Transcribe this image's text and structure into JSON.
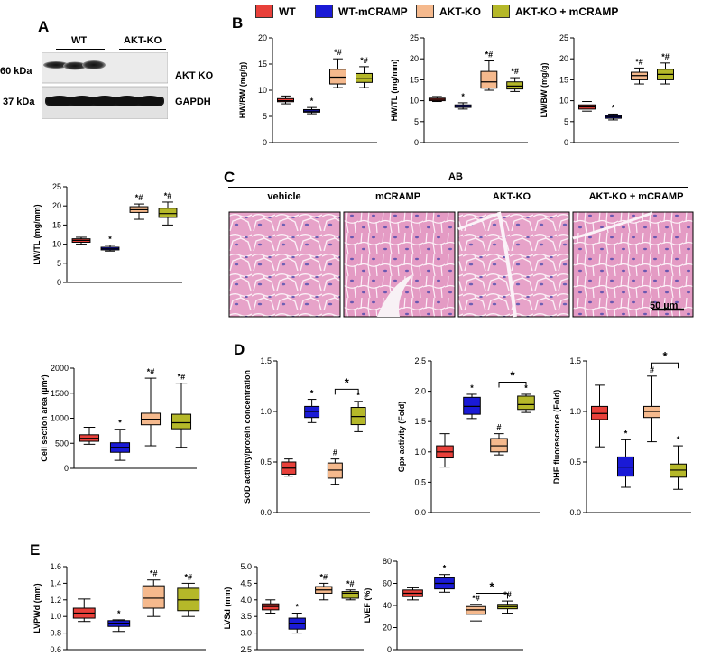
{
  "panel_labels": {
    "A": "A",
    "B": "B",
    "C": "C",
    "D": "D",
    "E": "E"
  },
  "legend": [
    {
      "name": "WT",
      "color": "#e8403a"
    },
    {
      "name": "WT-mCRAMP",
      "color": "#1a1ad6"
    },
    {
      "name": "AKT-KO",
      "color": "#f5b98d"
    },
    {
      "name": "AKT-KO + mCRAMP",
      "color": "#b5b829"
    }
  ],
  "western_blot": {
    "group_labels": [
      "WT",
      "AKT-KO"
    ],
    "rows": [
      {
        "mw": "60 kDa",
        "name": "AKT KO"
      },
      {
        "mw": "37 kDa",
        "name": "GAPDH"
      }
    ]
  },
  "histology": {
    "header": "AB",
    "labels": [
      "vehicle",
      "mCRAMP",
      "AKT-KO",
      "AKT-KO + mCRAMP"
    ],
    "scale_bar": "50 µm"
  },
  "chart_data": [
    {
      "id": "hwbw",
      "type": "box",
      "ylabel": "HW/BW (mg/g)",
      "ylim": [
        0,
        20
      ],
      "ticks": [
        "0",
        "5",
        "10",
        "15",
        "20"
      ],
      "series": [
        {
          "min": 7.4,
          "q1": 7.8,
          "med": 8.0,
          "q3": 8.4,
          "max": 8.9,
          "ann": ""
        },
        {
          "min": 5.5,
          "q1": 5.8,
          "med": 6.0,
          "q3": 6.3,
          "max": 6.7,
          "ann": "*"
        },
        {
          "min": 10.5,
          "q1": 11.2,
          "med": 12.5,
          "q3": 14.0,
          "max": 16.0,
          "ann": "*#"
        },
        {
          "min": 10.5,
          "q1": 11.5,
          "med": 12.2,
          "q3": 13.2,
          "max": 14.5,
          "ann": "*#"
        }
      ]
    },
    {
      "id": "hwtl",
      "type": "box",
      "ylabel": "HW/TL (mg/mm)",
      "ylim": [
        0,
        25
      ],
      "ticks": [
        "0",
        "5",
        "10",
        "15",
        "20",
        "25"
      ],
      "series": [
        {
          "min": 9.8,
          "q1": 10.0,
          "med": 10.3,
          "q3": 10.6,
          "max": 11.0,
          "ann": ""
        },
        {
          "min": 8.0,
          "q1": 8.4,
          "med": 8.7,
          "q3": 9.0,
          "max": 9.5,
          "ann": "*"
        },
        {
          "min": 12.5,
          "q1": 13.0,
          "med": 14.5,
          "q3": 17.0,
          "max": 19.5,
          "ann": "*#"
        },
        {
          "min": 12.2,
          "q1": 12.8,
          "med": 13.5,
          "q3": 14.5,
          "max": 15.5,
          "ann": "*#"
        }
      ]
    },
    {
      "id": "lwbw",
      "type": "box",
      "ylabel": "LW/BW (mg/g)",
      "ylim": [
        0,
        25
      ],
      "ticks": [
        "0",
        "5",
        "10",
        "15",
        "20",
        "25"
      ],
      "series": [
        {
          "min": 7.5,
          "q1": 8.0,
          "med": 8.5,
          "q3": 9.0,
          "max": 9.8,
          "ann": ""
        },
        {
          "min": 5.4,
          "q1": 5.8,
          "med": 6.1,
          "q3": 6.4,
          "max": 6.8,
          "ann": "*"
        },
        {
          "min": 14.0,
          "q1": 15.0,
          "med": 16.0,
          "q3": 16.8,
          "max": 17.8,
          "ann": "*#"
        },
        {
          "min": 14.0,
          "q1": 15.0,
          "med": 16.3,
          "q3": 17.5,
          "max": 19.0,
          "ann": "*#"
        }
      ]
    },
    {
      "id": "lwtl",
      "type": "box",
      "ylabel": "LW/TL (mg/mm)",
      "ylim": [
        0,
        25
      ],
      "ticks": [
        "0",
        "5",
        "10",
        "15",
        "20",
        "25"
      ],
      "series": [
        {
          "min": 10.0,
          "q1": 10.5,
          "med": 11.0,
          "q3": 11.4,
          "max": 11.8,
          "ann": ""
        },
        {
          "min": 8.2,
          "q1": 8.5,
          "med": 8.8,
          "q3": 9.2,
          "max": 9.7,
          "ann": "*"
        },
        {
          "min": 16.5,
          "q1": 18.3,
          "med": 19.0,
          "q3": 19.8,
          "max": 20.5,
          "ann": "*#"
        },
        {
          "min": 15.0,
          "q1": 17.0,
          "med": 18.0,
          "q3": 19.4,
          "max": 21.0,
          "ann": "*#"
        }
      ]
    },
    {
      "id": "csa",
      "type": "box",
      "ylabel": "Cell section area (µm²)",
      "ylim": [
        0,
        2000
      ],
      "ticks": [
        "0",
        "500",
        "1000",
        "1500",
        "2000"
      ],
      "series": [
        {
          "min": 480,
          "q1": 540,
          "med": 600,
          "q3": 670,
          "max": 820,
          "ann": ""
        },
        {
          "min": 160,
          "q1": 320,
          "med": 420,
          "q3": 510,
          "max": 780,
          "ann": "*"
        },
        {
          "min": 450,
          "q1": 870,
          "med": 980,
          "q3": 1100,
          "max": 1800,
          "ann": "*#"
        },
        {
          "min": 420,
          "q1": 790,
          "med": 910,
          "q3": 1080,
          "max": 1700,
          "ann": "*#"
        }
      ]
    },
    {
      "id": "sod",
      "type": "box",
      "ylabel": "SOD activity/protein concentration",
      "ylim": [
        0,
        1.5
      ],
      "ticks": [
        "0.0",
        "0.5",
        "1.0",
        "1.5"
      ],
      "series": [
        {
          "min": 0.36,
          "q1": 0.38,
          "med": 0.44,
          "q3": 0.5,
          "max": 0.53,
          "ann": ""
        },
        {
          "min": 0.89,
          "q1": 0.94,
          "med": 1.0,
          "q3": 1.05,
          "max": 1.12,
          "ann": "*"
        },
        {
          "min": 0.28,
          "q1": 0.34,
          "med": 0.42,
          "q3": 0.49,
          "max": 0.53,
          "ann": "#"
        },
        {
          "min": 0.8,
          "q1": 0.87,
          "med": 0.95,
          "q3": 1.04,
          "max": 1.1,
          "ann": "*"
        }
      ],
      "bracket": {
        "from": 2,
        "to": 3,
        "at": 1.22,
        "label": "*"
      }
    },
    {
      "id": "gpx",
      "type": "box",
      "ylabel": "Gpx activity (Fold)",
      "ylim": [
        0,
        2.5
      ],
      "ticks": [
        "0.0",
        "0.5",
        "1.0",
        "1.5",
        "2.0",
        "2.5"
      ],
      "series": [
        {
          "min": 0.75,
          "q1": 0.9,
          "med": 1.0,
          "q3": 1.1,
          "max": 1.3,
          "ann": ""
        },
        {
          "min": 1.55,
          "q1": 1.62,
          "med": 1.75,
          "q3": 1.9,
          "max": 1.95,
          "ann": "*"
        },
        {
          "min": 0.95,
          "q1": 1.0,
          "med": 1.1,
          "q3": 1.22,
          "max": 1.3,
          "ann": "#"
        },
        {
          "min": 1.65,
          "q1": 1.7,
          "med": 1.78,
          "q3": 1.92,
          "max": 1.95,
          "ann": "*"
        }
      ],
      "bracket": {
        "from": 2,
        "to": 3,
        "at": 2.15,
        "label": "*"
      }
    },
    {
      "id": "dhe",
      "type": "box",
      "ylabel": "DHE fluorescence (Fold)",
      "ylim": [
        0,
        1.5
      ],
      "ticks": [
        "0.0",
        "0.5",
        "1.0",
        "1.5"
      ],
      "series": [
        {
          "min": 0.65,
          "q1": 0.92,
          "med": 0.98,
          "q3": 1.05,
          "max": 1.26,
          "ann": ""
        },
        {
          "min": 0.25,
          "q1": 0.36,
          "med": 0.45,
          "q3": 0.55,
          "max": 0.72,
          "ann": "*"
        },
        {
          "min": 0.7,
          "q1": 0.94,
          "med": 1.0,
          "q3": 1.05,
          "max": 1.35,
          "ann": "#"
        },
        {
          "min": 0.23,
          "q1": 0.35,
          "med": 0.42,
          "q3": 0.48,
          "max": 0.66,
          "ann": "*"
        }
      ],
      "bracket": {
        "from": 2,
        "to": 3,
        "at": 1.48,
        "label": "*"
      }
    },
    {
      "id": "lvpwd",
      "type": "box",
      "ylabel": "LVPWd (mm)",
      "ylim": [
        0.6,
        1.6
      ],
      "ticks": [
        "0.6",
        "0.8",
        "1.0",
        "1.2",
        "1.4",
        "1.6"
      ],
      "series": [
        {
          "min": 0.94,
          "q1": 0.98,
          "med": 1.04,
          "q3": 1.1,
          "max": 1.21,
          "ann": ""
        },
        {
          "min": 0.82,
          "q1": 0.88,
          "med": 0.92,
          "q3": 0.95,
          "max": 0.96,
          "ann": "*"
        },
        {
          "min": 1.0,
          "q1": 1.1,
          "med": 1.22,
          "q3": 1.37,
          "max": 1.44,
          "ann": "*#"
        },
        {
          "min": 1.0,
          "q1": 1.07,
          "med": 1.2,
          "q3": 1.34,
          "max": 1.4,
          "ann": "*#"
        }
      ]
    },
    {
      "id": "lvsd",
      "type": "box",
      "ylabel": "LVSd (mm)",
      "ylim": [
        2.5,
        5.0
      ],
      "ticks": [
        "2.5",
        "3.0",
        "3.5",
        "4.0",
        "4.5",
        "5.0"
      ],
      "series": [
        {
          "min": 3.6,
          "q1": 3.7,
          "med": 3.8,
          "q3": 3.88,
          "max": 4.0,
          "ann": ""
        },
        {
          "min": 3.0,
          "q1": 3.12,
          "med": 3.3,
          "q3": 3.45,
          "max": 3.6,
          "ann": "*"
        },
        {
          "min": 4.0,
          "q1": 4.2,
          "med": 4.3,
          "q3": 4.4,
          "max": 4.5,
          "ann": "*#"
        },
        {
          "min": 4.0,
          "q1": 4.05,
          "med": 4.2,
          "q3": 4.25,
          "max": 4.3,
          "ann": "*#"
        }
      ]
    },
    {
      "id": "lvef",
      "type": "box",
      "ylabel": "LVEF (%)",
      "ylim": [
        0,
        80
      ],
      "ticks": [
        "0",
        "20",
        "40",
        "60",
        "80"
      ],
      "series": [
        {
          "min": 45,
          "q1": 48,
          "med": 51,
          "q3": 54,
          "max": 56,
          "ann": ""
        },
        {
          "min": 52,
          "q1": 55,
          "med": 60,
          "q3": 65,
          "max": 68,
          "ann": "*"
        },
        {
          "min": 26,
          "q1": 32,
          "med": 36,
          "q3": 39,
          "max": 41,
          "ann": "*#"
        },
        {
          "min": 33,
          "q1": 37,
          "med": 39,
          "q3": 41,
          "max": 44,
          "ann": "*#"
        }
      ],
      "bracket": {
        "from": 2,
        "to": 3,
        "at": 51,
        "label": "*"
      }
    }
  ]
}
